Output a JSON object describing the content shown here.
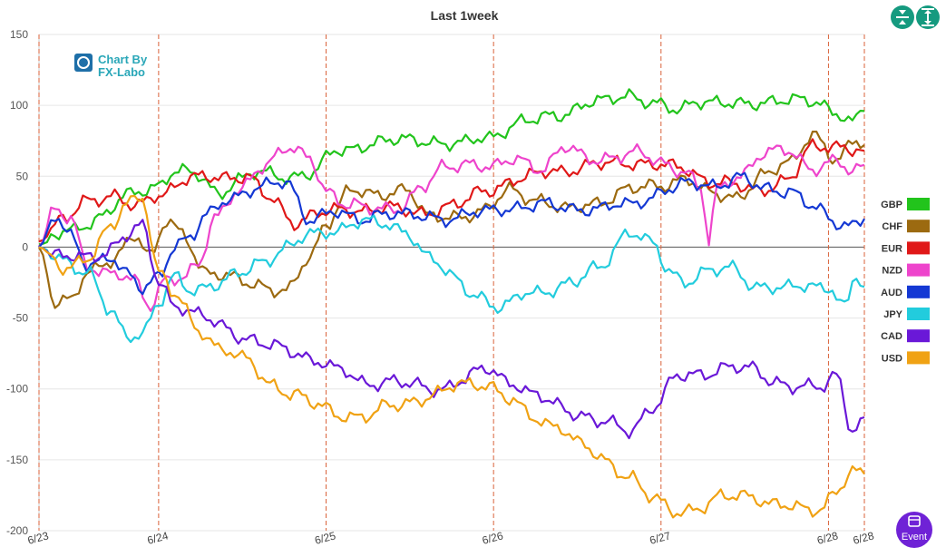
{
  "chart_data": {
    "type": "line",
    "title": "Last 1week",
    "ylim": [
      -200,
      150
    ],
    "y_ticks": [
      "150",
      "100",
      "50",
      "0",
      "-50",
      "-100",
      "-150",
      "-200"
    ],
    "x_ticks": [
      "6/23",
      "6/24",
      "6/25",
      "6/26",
      "6/27",
      "6/28",
      "6/28"
    ],
    "x_tick_index": [
      0,
      30,
      72,
      114,
      156,
      198,
      207
    ],
    "n_points": 208,
    "grid": true,
    "legend_position": "right",
    "series": [
      {
        "name": "GBP",
        "color": "#22c41c",
        "keys": [
          [
            0,
            2
          ],
          [
            8,
            12
          ],
          [
            16,
            22
          ],
          [
            22,
            36
          ],
          [
            30,
            44
          ],
          [
            34,
            54
          ],
          [
            40,
            50
          ],
          [
            45,
            38
          ],
          [
            50,
            48
          ],
          [
            55,
            52
          ],
          [
            62,
            50
          ],
          [
            68,
            52
          ],
          [
            75,
            68
          ],
          [
            85,
            74
          ],
          [
            95,
            76
          ],
          [
            105,
            72
          ],
          [
            112,
            78
          ],
          [
            122,
            88
          ],
          [
            130,
            94
          ],
          [
            140,
            102
          ],
          [
            148,
            108
          ],
          [
            155,
            100
          ],
          [
            160,
            96
          ],
          [
            165,
            104
          ],
          [
            175,
            100
          ],
          [
            185,
            104
          ],
          [
            195,
            102
          ],
          [
            200,
            96
          ],
          [
            204,
            88
          ],
          [
            207,
            96
          ]
        ]
      },
      {
        "name": "CHF",
        "color": "#9c6a10",
        "keys": [
          [
            0,
            0
          ],
          [
            4,
            -38
          ],
          [
            8,
            -36
          ],
          [
            12,
            -20
          ],
          [
            18,
            -10
          ],
          [
            24,
            10
          ],
          [
            28,
            -8
          ],
          [
            32,
            18
          ],
          [
            36,
            10
          ],
          [
            42,
            -18
          ],
          [
            48,
            -22
          ],
          [
            55,
            -26
          ],
          [
            62,
            -32
          ],
          [
            68,
            -8
          ],
          [
            72,
            18
          ],
          [
            78,
            40
          ],
          [
            84,
            36
          ],
          [
            92,
            42
          ],
          [
            98,
            20
          ],
          [
            105,
            22
          ],
          [
            112,
            26
          ],
          [
            118,
            40
          ],
          [
            125,
            34
          ],
          [
            132,
            26
          ],
          [
            140,
            32
          ],
          [
            148,
            40
          ],
          [
            155,
            44
          ],
          [
            162,
            48
          ],
          [
            168,
            38
          ],
          [
            175,
            36
          ],
          [
            182,
            50
          ],
          [
            188,
            60
          ],
          [
            194,
            80
          ],
          [
            200,
            60
          ],
          [
            205,
            76
          ],
          [
            207,
            72
          ]
        ]
      },
      {
        "name": "EUR",
        "color": "#e01818",
        "keys": [
          [
            0,
            4
          ],
          [
            6,
            18
          ],
          [
            12,
            34
          ],
          [
            18,
            36
          ],
          [
            24,
            28
          ],
          [
            30,
            38
          ],
          [
            38,
            48
          ],
          [
            46,
            50
          ],
          [
            52,
            50
          ],
          [
            58,
            34
          ],
          [
            64,
            18
          ],
          [
            70,
            24
          ],
          [
            78,
            26
          ],
          [
            86,
            28
          ],
          [
            95,
            24
          ],
          [
            105,
            30
          ],
          [
            112,
            40
          ],
          [
            120,
            48
          ],
          [
            130,
            54
          ],
          [
            140,
            58
          ],
          [
            150,
            60
          ],
          [
            160,
            56
          ],
          [
            170,
            46
          ],
          [
            180,
            40
          ],
          [
            188,
            48
          ],
          [
            194,
            70
          ],
          [
            200,
            72
          ],
          [
            207,
            68
          ]
        ]
      },
      {
        "name": "NZD",
        "color": "#ee44cc",
        "keys": [
          [
            0,
            0
          ],
          [
            4,
            28
          ],
          [
            8,
            22
          ],
          [
            12,
            -14
          ],
          [
            16,
            -20
          ],
          [
            20,
            -18
          ],
          [
            24,
            -22
          ],
          [
            28,
            -42
          ],
          [
            32,
            -24
          ],
          [
            36,
            -22
          ],
          [
            40,
            -10
          ],
          [
            44,
            20
          ],
          [
            50,
            38
          ],
          [
            56,
            58
          ],
          [
            62,
            70
          ],
          [
            68,
            62
          ],
          [
            72,
            40
          ],
          [
            78,
            30
          ],
          [
            84,
            26
          ],
          [
            90,
            28
          ],
          [
            96,
            42
          ],
          [
            102,
            56
          ],
          [
            108,
            60
          ],
          [
            114,
            56
          ],
          [
            120,
            62
          ],
          [
            126,
            56
          ],
          [
            132,
            70
          ],
          [
            138,
            62
          ],
          [
            144,
            64
          ],
          [
            150,
            66
          ],
          [
            156,
            60
          ],
          [
            162,
            54
          ],
          [
            166,
            40
          ],
          [
            168,
            4
          ],
          [
            170,
            40
          ],
          [
            176,
            52
          ],
          [
            182,
            66
          ],
          [
            188,
            68
          ],
          [
            194,
            56
          ],
          [
            200,
            60
          ],
          [
            204,
            52
          ],
          [
            207,
            58
          ]
        ]
      },
      {
        "name": "AUD",
        "color": "#1438d4",
        "keys": [
          [
            0,
            0
          ],
          [
            4,
            22
          ],
          [
            8,
            6
          ],
          [
            12,
            -12
          ],
          [
            18,
            -6
          ],
          [
            22,
            -20
          ],
          [
            26,
            -30
          ],
          [
            30,
            -20
          ],
          [
            34,
            2
          ],
          [
            38,
            6
          ],
          [
            42,
            22
          ],
          [
            48,
            36
          ],
          [
            56,
            42
          ],
          [
            62,
            46
          ],
          [
            68,
            20
          ],
          [
            74,
            24
          ],
          [
            80,
            20
          ],
          [
            86,
            24
          ],
          [
            92,
            22
          ],
          [
            98,
            22
          ],
          [
            104,
            20
          ],
          [
            110,
            24
          ],
          [
            116,
            28
          ],
          [
            122,
            28
          ],
          [
            128,
            30
          ],
          [
            134,
            28
          ],
          [
            140,
            26
          ],
          [
            146,
            30
          ],
          [
            152,
            34
          ],
          [
            158,
            40
          ],
          [
            164,
            46
          ],
          [
            170,
            44
          ],
          [
            176,
            48
          ],
          [
            182,
            42
          ],
          [
            188,
            40
          ],
          [
            194,
            28
          ],
          [
            200,
            18
          ],
          [
            204,
            16
          ],
          [
            207,
            20
          ]
        ]
      },
      {
        "name": "JPY",
        "color": "#22ccdd",
        "keys": [
          [
            0,
            0
          ],
          [
            6,
            -8
          ],
          [
            12,
            -18
          ],
          [
            18,
            -46
          ],
          [
            22,
            -62
          ],
          [
            26,
            -60
          ],
          [
            30,
            -40
          ],
          [
            34,
            -22
          ],
          [
            38,
            -30
          ],
          [
            44,
            -26
          ],
          [
            50,
            -20
          ],
          [
            56,
            -10
          ],
          [
            62,
            0
          ],
          [
            68,
            8
          ],
          [
            74,
            12
          ],
          [
            80,
            18
          ],
          [
            86,
            16
          ],
          [
            92,
            12
          ],
          [
            98,
            -8
          ],
          [
            104,
            -22
          ],
          [
            110,
            -34
          ],
          [
            116,
            -44
          ],
          [
            122,
            -32
          ],
          [
            128,
            -30
          ],
          [
            134,
            -26
          ],
          [
            140,
            -14
          ],
          [
            148,
            10
          ],
          [
            154,
            2
          ],
          [
            158,
            -16
          ],
          [
            162,
            -24
          ],
          [
            168,
            -18
          ],
          [
            174,
            -14
          ],
          [
            180,
            -28
          ],
          [
            186,
            -30
          ],
          [
            192,
            -26
          ],
          [
            198,
            -28
          ],
          [
            202,
            -44
          ],
          [
            205,
            -20
          ],
          [
            207,
            -28
          ]
        ]
      },
      {
        "name": "CAD",
        "color": "#6a18d8",
        "keys": [
          [
            0,
            0
          ],
          [
            4,
            -6
          ],
          [
            10,
            -8
          ],
          [
            16,
            -4
          ],
          [
            22,
            8
          ],
          [
            26,
            14
          ],
          [
            30,
            -24
          ],
          [
            34,
            -40
          ],
          [
            40,
            -48
          ],
          [
            46,
            -56
          ],
          [
            52,
            -64
          ],
          [
            58,
            -70
          ],
          [
            64,
            -74
          ],
          [
            70,
            -80
          ],
          [
            76,
            -88
          ],
          [
            82,
            -96
          ],
          [
            88,
            -94
          ],
          [
            94,
            -98
          ],
          [
            100,
            -100
          ],
          [
            106,
            -94
          ],
          [
            112,
            -86
          ],
          [
            118,
            -94
          ],
          [
            124,
            -104
          ],
          [
            130,
            -112
          ],
          [
            136,
            -118
          ],
          [
            142,
            -124
          ],
          [
            148,
            -130
          ],
          [
            154,
            -112
          ],
          [
            160,
            -92
          ],
          [
            166,
            -90
          ],
          [
            172,
            -84
          ],
          [
            178,
            -86
          ],
          [
            184,
            -94
          ],
          [
            190,
            -98
          ],
          [
            196,
            -100
          ],
          [
            200,
            -90
          ],
          [
            204,
            -128
          ],
          [
            207,
            -120
          ]
        ]
      },
      {
        "name": "USD",
        "color": "#f0a214",
        "keys": [
          [
            0,
            0
          ],
          [
            6,
            -14
          ],
          [
            12,
            -8
          ],
          [
            18,
            12
          ],
          [
            22,
            32
          ],
          [
            26,
            36
          ],
          [
            30,
            -18
          ],
          [
            34,
            -34
          ],
          [
            40,
            -58
          ],
          [
            46,
            -72
          ],
          [
            52,
            -80
          ],
          [
            58,
            -96
          ],
          [
            64,
            -104
          ],
          [
            70,
            -112
          ],
          [
            76,
            -118
          ],
          [
            82,
            -120
          ],
          [
            88,
            -112
          ],
          [
            94,
            -108
          ],
          [
            100,
            -104
          ],
          [
            106,
            -96
          ],
          [
            112,
            -96
          ],
          [
            118,
            -108
          ],
          [
            124,
            -120
          ],
          [
            130,
            -126
          ],
          [
            136,
            -140
          ],
          [
            142,
            -150
          ],
          [
            148,
            -162
          ],
          [
            154,
            -178
          ],
          [
            160,
            -186
          ],
          [
            166,
            -184
          ],
          [
            172,
            -176
          ],
          [
            178,
            -174
          ],
          [
            184,
            -182
          ],
          [
            190,
            -184
          ],
          [
            196,
            -184
          ],
          [
            200,
            -172
          ],
          [
            204,
            -160
          ],
          [
            207,
            -160
          ]
        ]
      }
    ]
  },
  "logo": {
    "line1": "Chart By",
    "line2": "FX-Labo"
  },
  "buttons": {
    "event_label": "Event"
  }
}
